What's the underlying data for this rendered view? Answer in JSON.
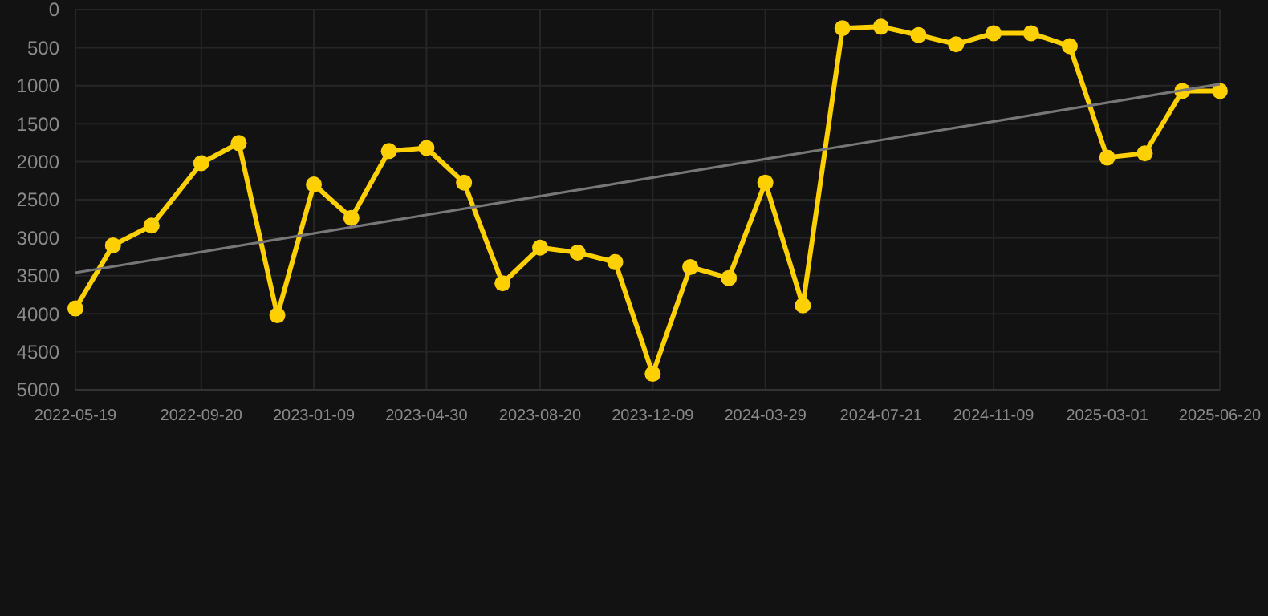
{
  "chart_data": {
    "type": "line",
    "x": [
      "2022-05-19",
      "2022-06-25",
      "2022-08-02",
      "2022-09-20",
      "2022-10-27",
      "2022-12-04",
      "2023-01-09",
      "2023-02-15",
      "2023-03-24",
      "2023-04-30",
      "2023-06-06",
      "2023-07-14",
      "2023-08-20",
      "2023-09-26",
      "2023-11-02",
      "2023-12-09",
      "2024-01-15",
      "2024-02-22",
      "2024-03-29",
      "2024-05-05",
      "2024-06-13",
      "2024-07-21",
      "2024-08-27",
      "2024-10-03",
      "2024-11-09",
      "2024-12-16",
      "2025-01-23",
      "2025-03-01",
      "2025-04-07",
      "2025-05-14",
      "2025-06-20"
    ],
    "series": [
      {
        "color": "#ffd000",
        "marker": "circle",
        "values": [
          3930,
          3100,
          2840,
          2020,
          1755,
          4020,
          2300,
          2740,
          1860,
          1820,
          2275,
          3600,
          3130,
          3195,
          3320,
          4790,
          3385,
          3530,
          2275,
          3890,
          245,
          225,
          335,
          455,
          310,
          310,
          480,
          1945,
          1890,
          1070,
          1070
        ]
      },
      {
        "type": "line",
        "color": "#777777",
        "marker": "none",
        "x": [
          "2022-05-19",
          "2025-06-20"
        ],
        "values": [
          3460,
          980
        ]
      }
    ],
    "xlim": [
      "2022-05-19",
      "2025-06-20"
    ],
    "xticks": [
      "2022-05-19",
      "2022-09-20",
      "2023-01-09",
      "2023-04-30",
      "2023-08-20",
      "2023-12-09",
      "2024-03-29",
      "2024-07-21",
      "2024-11-09",
      "2025-03-01",
      "2025-06-20"
    ],
    "ylim": [
      5000,
      0
    ],
    "yticks": [
      0,
      500,
      1000,
      1500,
      2000,
      2500,
      3000,
      3500,
      4000,
      4500,
      5000
    ],
    "grid": true
  }
}
